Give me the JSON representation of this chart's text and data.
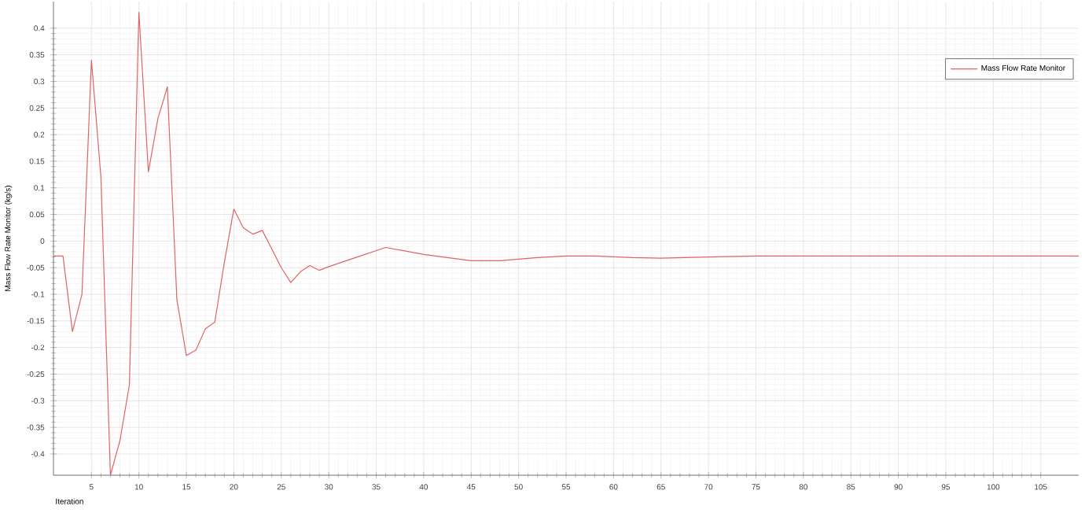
{
  "chart_data": {
    "type": "line",
    "xlabel": "Iteration",
    "ylabel": "Mass Flow Rate Monitor (kg/s)",
    "legend": "top right",
    "grid": true,
    "xlim": [
      1,
      109
    ],
    "ylim": [
      -0.44,
      0.45
    ],
    "xticks": [
      5,
      10,
      15,
      20,
      25,
      30,
      35,
      40,
      45,
      50,
      55,
      60,
      65,
      70,
      75,
      80,
      85,
      90,
      95,
      100,
      105
    ],
    "yticks": [
      -0.4,
      -0.35,
      -0.3,
      -0.25,
      -0.2,
      -0.15,
      -0.1,
      -0.05,
      0,
      0.05,
      0.1,
      0.15,
      0.2,
      0.25,
      0.3,
      0.35,
      0.4
    ],
    "series": [
      {
        "name": "Mass Flow Rate Monitor",
        "color": "#e06464",
        "x": [
          1,
          2,
          3,
          4,
          5,
          6,
          7,
          8,
          9,
          10,
          11,
          12,
          13,
          14,
          15,
          16,
          17,
          18,
          19,
          20,
          21,
          22,
          23,
          24,
          25,
          26,
          27,
          28,
          29,
          30,
          33,
          36,
          40,
          45,
          48,
          52,
          55,
          58,
          62,
          65,
          70,
          75,
          80,
          90,
          100,
          109
        ],
        "values": [
          -0.028,
          -0.028,
          -0.17,
          -0.1,
          0.34,
          0.12,
          -0.44,
          -0.375,
          -0.27,
          0.43,
          0.13,
          0.23,
          0.29,
          -0.11,
          -0.215,
          -0.205,
          -0.165,
          -0.152,
          -0.04,
          0.06,
          0.025,
          0.013,
          0.02,
          -0.015,
          -0.05,
          -0.078,
          -0.058,
          -0.046,
          -0.055,
          -0.048,
          -0.03,
          -0.012,
          -0.025,
          -0.037,
          -0.037,
          -0.031,
          -0.028,
          -0.028,
          -0.031,
          -0.032,
          -0.03,
          -0.028,
          -0.028,
          -0.028,
          -0.028,
          -0.028
        ]
      }
    ]
  }
}
